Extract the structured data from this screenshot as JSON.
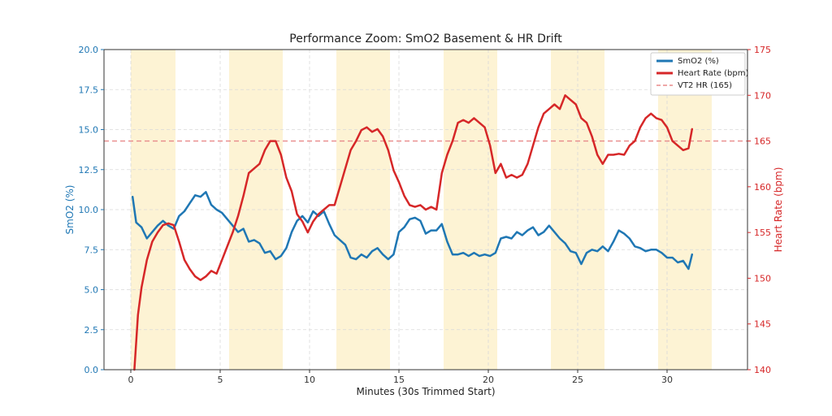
{
  "chart_data": {
    "type": "line",
    "title": "Performance Zoom: SmO2 Basement & HR Drift",
    "xlabel": "Minutes (30s Trimmed Start)",
    "ylabel_left": "SmO2 (%)",
    "ylabel_right": "Heart Rate (bpm)",
    "xlim": [
      -1.5,
      34.5
    ],
    "ylim_left": [
      0,
      20
    ],
    "ylim_right": [
      140,
      175
    ],
    "x_ticks": [
      0,
      5,
      10,
      15,
      20,
      25,
      30
    ],
    "y_left_ticks": [
      "0.0",
      "2.5",
      "5.0",
      "7.5",
      "10.0",
      "12.5",
      "15.0",
      "17.5",
      "20.0"
    ],
    "y_right_ticks": [
      140,
      145,
      150,
      155,
      160,
      165,
      170,
      175
    ],
    "grid": true,
    "legend_position": "top-right",
    "shaded_intervals": [
      [
        0,
        2.5
      ],
      [
        5.5,
        8.5
      ],
      [
        11.5,
        14.5
      ],
      [
        17.5,
        20.5
      ],
      [
        23.5,
        26.5
      ],
      [
        29.5,
        32.5
      ]
    ],
    "shade_color": "#fdf3d4",
    "vt2": {
      "name": "VT2 HR (165)",
      "value": 165,
      "color": "#e88a8a"
    },
    "series": [
      {
        "name": "SmO2 (%)",
        "axis": "left",
        "color": "#1f77b4",
        "x": [
          0.1,
          0.3,
          0.6,
          0.9,
          1.2,
          1.5,
          1.8,
          2.1,
          2.4,
          2.7,
          3.0,
          3.3,
          3.6,
          3.9,
          4.2,
          4.5,
          4.8,
          5.1,
          5.4,
          5.7,
          6.0,
          6.3,
          6.6,
          6.9,
          7.2,
          7.5,
          7.8,
          8.1,
          8.4,
          8.7,
          9.0,
          9.3,
          9.6,
          9.9,
          10.2,
          10.5,
          10.8,
          11.1,
          11.4,
          11.7,
          12.0,
          12.3,
          12.6,
          12.9,
          13.2,
          13.5,
          13.8,
          14.1,
          14.4,
          14.7,
          15.0,
          15.3,
          15.6,
          15.9,
          16.2,
          16.5,
          16.8,
          17.1,
          17.4,
          17.7,
          18.0,
          18.3,
          18.6,
          18.9,
          19.2,
          19.5,
          19.8,
          20.1,
          20.4,
          20.7,
          21.0,
          21.3,
          21.6,
          21.9,
          22.2,
          22.5,
          22.8,
          23.1,
          23.4,
          23.7,
          24.0,
          24.3,
          24.6,
          24.9,
          25.2,
          25.5,
          25.8,
          26.1,
          26.4,
          26.7,
          27.0,
          27.3,
          27.6,
          27.9,
          28.2,
          28.5,
          28.8,
          29.1,
          29.4,
          29.7,
          30.0,
          30.3,
          30.6,
          30.9,
          31.2,
          31.4
        ],
        "values": [
          10.8,
          9.2,
          8.9,
          8.2,
          8.6,
          9.0,
          9.3,
          9.0,
          8.8,
          9.6,
          9.9,
          10.4,
          10.9,
          10.8,
          11.1,
          10.3,
          10.0,
          9.8,
          9.4,
          9.0,
          8.6,
          8.8,
          8.0,
          8.1,
          7.9,
          7.3,
          7.4,
          6.9,
          7.1,
          7.6,
          8.6,
          9.3,
          9.6,
          9.2,
          9.9,
          9.6,
          9.9,
          9.1,
          8.4,
          8.1,
          7.8,
          7.0,
          6.9,
          7.2,
          7.0,
          7.4,
          7.6,
          7.2,
          6.9,
          7.2,
          8.6,
          8.9,
          9.4,
          9.5,
          9.3,
          8.5,
          8.7,
          8.7,
          9.1,
          8.0,
          7.2,
          7.2,
          7.3,
          7.1,
          7.3,
          7.1,
          7.2,
          7.1,
          7.3,
          8.2,
          8.3,
          8.2,
          8.6,
          8.4,
          8.7,
          8.9,
          8.4,
          8.6,
          9.0,
          8.6,
          8.2,
          7.9,
          7.4,
          7.3,
          6.6,
          7.3,
          7.5,
          7.4,
          7.7,
          7.4,
          8.0,
          8.7,
          8.5,
          8.2,
          7.7,
          7.6,
          7.4,
          7.5,
          7.5,
          7.3,
          7.0,
          7.0,
          6.7,
          6.8,
          6.3,
          7.2
        ]
      },
      {
        "name": "Heart Rate (bpm)",
        "axis": "right",
        "color": "#d62728",
        "x": [
          0.2,
          0.4,
          0.6,
          0.9,
          1.2,
          1.5,
          1.8,
          2.1,
          2.4,
          2.7,
          3.0,
          3.3,
          3.6,
          3.9,
          4.2,
          4.5,
          4.8,
          5.1,
          5.4,
          5.7,
          6.0,
          6.3,
          6.6,
          6.9,
          7.2,
          7.5,
          7.8,
          8.1,
          8.4,
          8.7,
          9.0,
          9.3,
          9.6,
          9.9,
          10.2,
          10.5,
          10.8,
          11.1,
          11.4,
          11.7,
          12.0,
          12.3,
          12.6,
          12.9,
          13.2,
          13.5,
          13.8,
          14.1,
          14.4,
          14.7,
          15.0,
          15.3,
          15.6,
          15.9,
          16.2,
          16.5,
          16.8,
          17.1,
          17.4,
          17.7,
          18.0,
          18.3,
          18.6,
          18.9,
          19.2,
          19.5,
          19.8,
          20.1,
          20.4,
          20.7,
          21.0,
          21.3,
          21.6,
          21.9,
          22.2,
          22.5,
          22.8,
          23.1,
          23.4,
          23.7,
          24.0,
          24.3,
          24.6,
          24.9,
          25.2,
          25.5,
          25.8,
          26.1,
          26.4,
          26.7,
          27.0,
          27.3,
          27.6,
          27.9,
          28.2,
          28.5,
          28.8,
          29.1,
          29.4,
          29.7,
          30.0,
          30.3,
          30.6,
          30.9,
          31.2,
          31.4
        ],
        "values": [
          140.0,
          146.0,
          149.0,
          152.0,
          154.0,
          155.0,
          155.8,
          156.0,
          155.8,
          154.0,
          152.0,
          151.0,
          150.2,
          149.8,
          150.2,
          150.8,
          150.5,
          152.0,
          153.5,
          155.0,
          156.8,
          159.0,
          161.5,
          162.0,
          162.5,
          164.0,
          165.0,
          165.0,
          163.5,
          161.0,
          159.5,
          157.0,
          156.2,
          155.0,
          156.2,
          157.0,
          157.5,
          158.0,
          158.0,
          160.0,
          162.0,
          164.0,
          165.0,
          166.2,
          166.5,
          166.0,
          166.3,
          165.5,
          164.0,
          161.8,
          160.5,
          159.0,
          158.0,
          157.8,
          158.0,
          157.5,
          157.8,
          157.5,
          161.5,
          163.5,
          165.0,
          167.0,
          167.3,
          167.0,
          167.5,
          167.0,
          166.5,
          164.5,
          161.5,
          162.5,
          161.0,
          161.3,
          161.0,
          161.3,
          162.5,
          164.5,
          166.5,
          168.0,
          168.5,
          169.0,
          168.5,
          170.0,
          169.5,
          169.0,
          167.5,
          167.0,
          165.5,
          163.5,
          162.5,
          163.5,
          163.5,
          163.6,
          163.5,
          164.5,
          165.0,
          166.5,
          167.5,
          168.0,
          167.5,
          167.3,
          166.5,
          165.0,
          164.5,
          164.0,
          164.2,
          166.3
        ]
      }
    ]
  }
}
